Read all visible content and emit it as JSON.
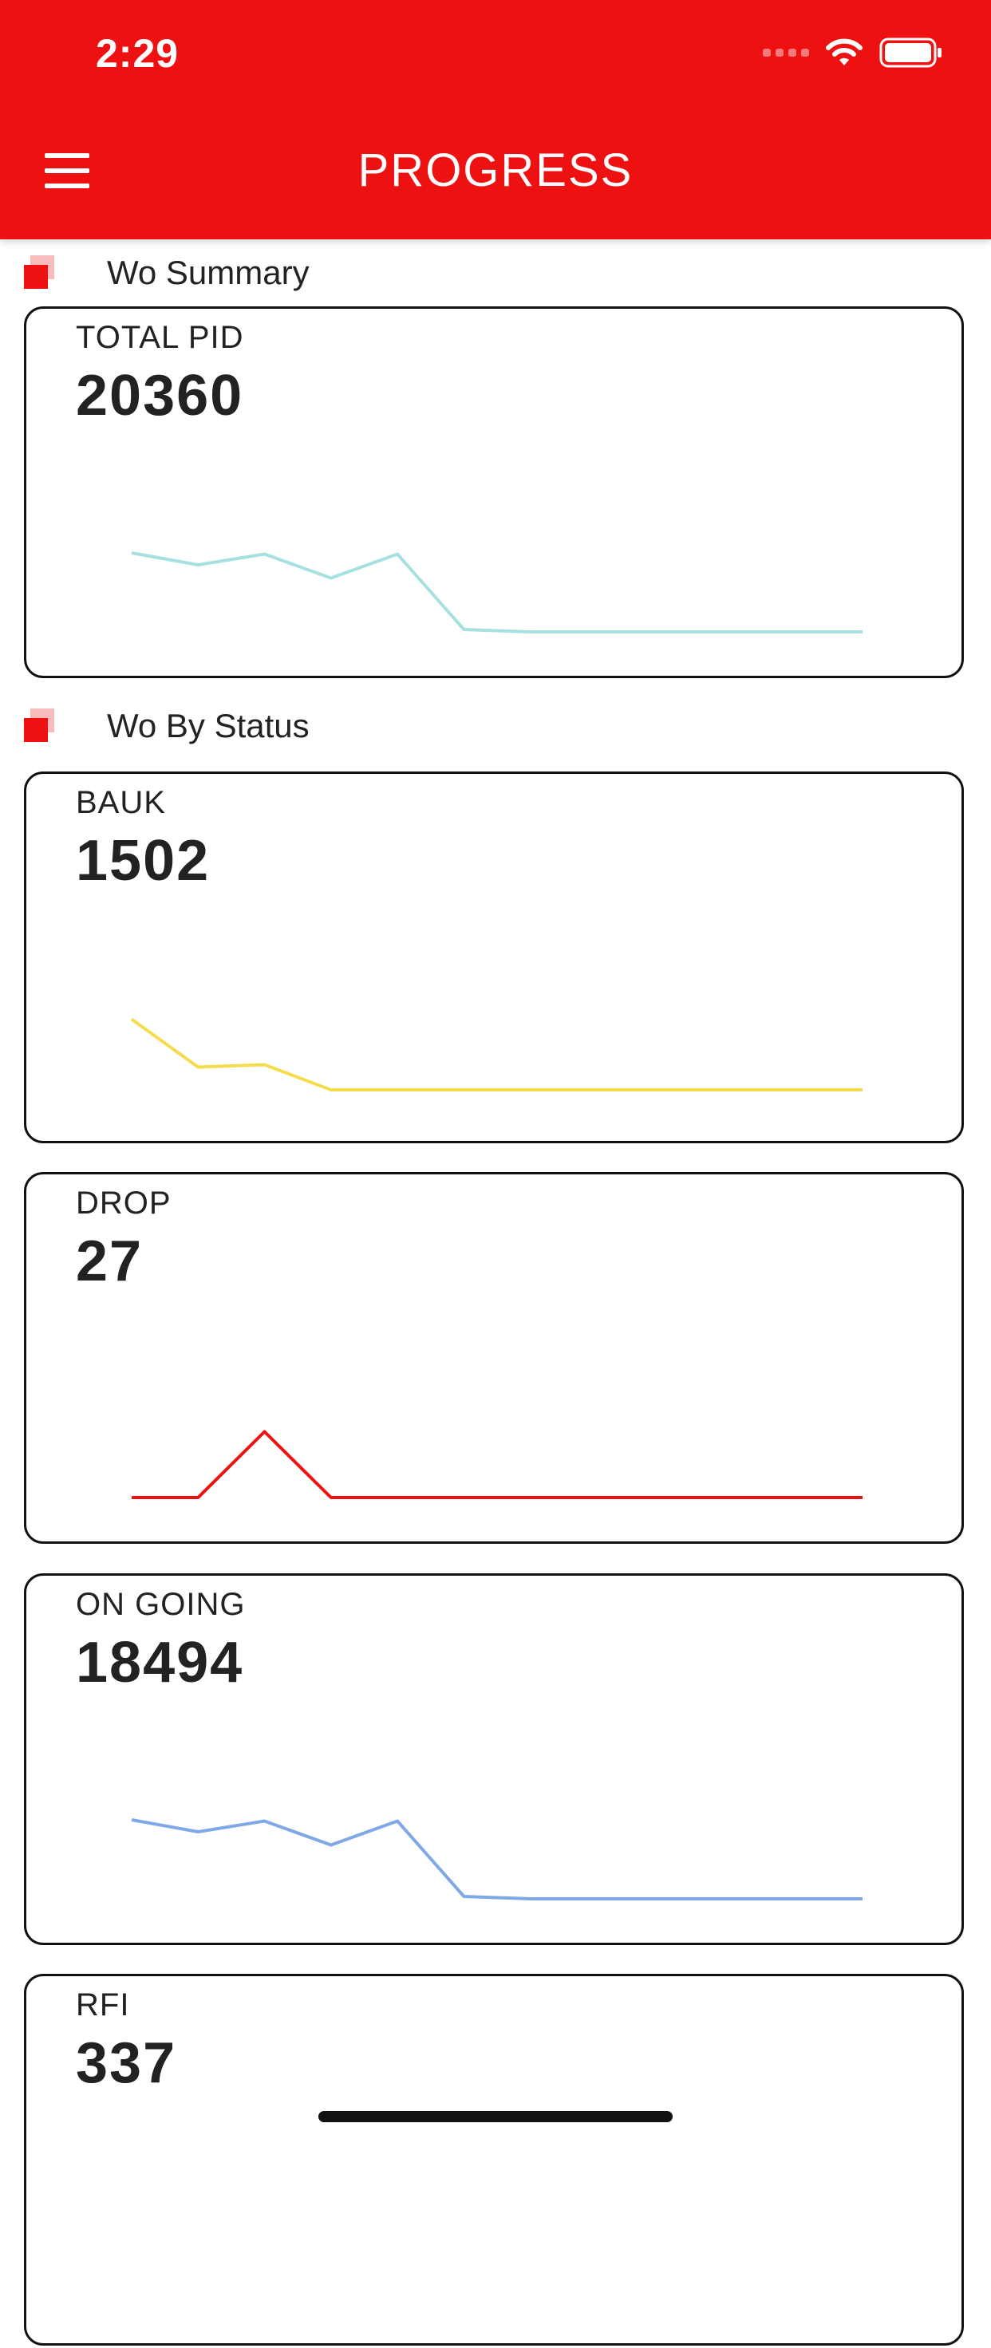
{
  "status_bar": {
    "time": "2:29"
  },
  "header": {
    "title": "PROGRESS"
  },
  "sections": {
    "summary": {
      "title": "Wo Summary"
    },
    "by_status": {
      "title": "Wo By Status"
    }
  },
  "cards": [
    {
      "label": "TOTAL PID",
      "value": "20360",
      "color": "#a6e0e0",
      "trend": [
        0.76,
        0.66,
        0.75,
        0.55,
        0.75,
        0.12,
        0.1,
        0.1,
        0.1,
        0.1,
        0.1,
        0.1
      ]
    },
    {
      "label": "BAUK",
      "value": "1502",
      "color": "#f5dc4e",
      "trend": [
        0.75,
        0.35,
        0.37,
        0.16,
        0.16,
        0.16,
        0.16,
        0.16,
        0.16,
        0.16,
        0.16,
        0.16
      ]
    },
    {
      "label": "DROP",
      "value": "27",
      "color": "#ee1111",
      "trend": [
        0.1,
        0.1,
        0.65,
        0.1,
        0.1,
        0.1,
        0.1,
        0.1,
        0.1,
        0.1,
        0.1,
        0.1
      ]
    },
    {
      "label": "ON GOING",
      "value": "18494",
      "color": "#80a8e6",
      "trend": [
        0.76,
        0.66,
        0.75,
        0.55,
        0.75,
        0.12,
        0.1,
        0.1,
        0.1,
        0.1,
        0.1,
        0.1
      ]
    },
    {
      "label": "RFI",
      "value": "337",
      "color": "#ee1111",
      "trend": []
    }
  ]
}
